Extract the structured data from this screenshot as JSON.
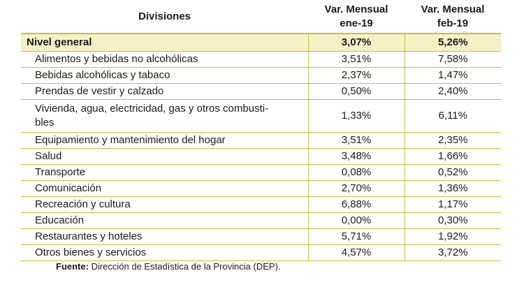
{
  "table": {
    "headers": {
      "division": "Divisiones",
      "col1_line1": "Var. Mensual",
      "col1_line2": "ene-19",
      "col2_line1": "Var. Mensual",
      "col2_line2": "feb-19"
    },
    "general": {
      "name": "Nivel general",
      "ene": "3,07%",
      "feb": "5,26%"
    },
    "rows": [
      {
        "name": "Alimentos y bebidas no alcohólicas",
        "ene": "3,51%",
        "feb": "7,58%"
      },
      {
        "name": "Bebidas alcohólicas y tabaco",
        "ene": "2,37%",
        "feb": "1,47%"
      },
      {
        "name": "Prendas de vestir y calzado",
        "ene": "0,50%",
        "feb": "2,40%"
      },
      {
        "name": "Vivienda, agua, electricidad, gas y otros combusti-",
        "name2": "bles",
        "ene": "1,33%",
        "feb": "6,11%"
      },
      {
        "name": "Equipamiento y mantenimiento del hogar",
        "ene": "3,51%",
        "feb": "2,35%"
      },
      {
        "name": "Salud",
        "ene": "3,48%",
        "feb": "1,66%"
      },
      {
        "name": "Transporte",
        "ene": "0,08%",
        "feb": "0,52%"
      },
      {
        "name": "Comunicación",
        "ene": "2,70%",
        "feb": "1,36%"
      },
      {
        "name": "Recreación y cultura",
        "ene": "6,88%",
        "feb": "1,17%"
      },
      {
        "name": "Educación",
        "ene": "0,00%",
        "feb": "0,30%"
      },
      {
        "name": "Restaurantes y hoteles",
        "ene": "5,71%",
        "feb": "1,92%"
      },
      {
        "name": "Otros bienes y servicios",
        "ene": "4,57%",
        "feb": "3,72%"
      }
    ]
  },
  "source": {
    "label": "Fuente:",
    "text": " Dirección de Estadística de la Provincia (DEP)."
  },
  "colors": {
    "rule": "#c8bd3a",
    "highlight": "#f4f1c6"
  }
}
